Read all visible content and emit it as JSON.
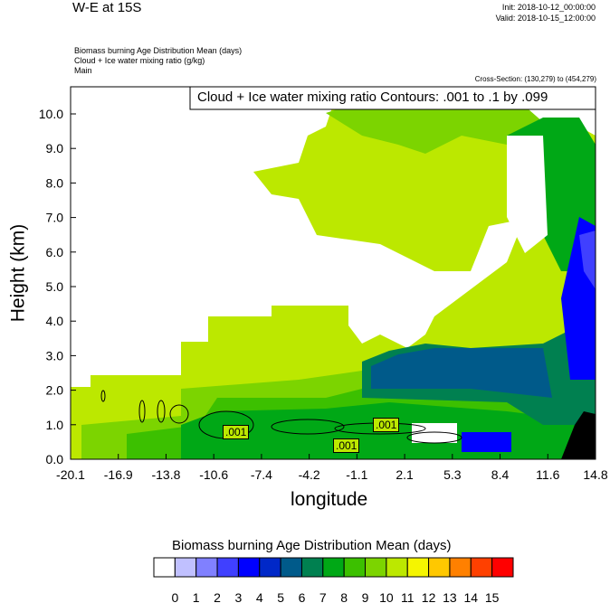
{
  "header": {
    "title": "W-E at 15S",
    "init": "Init: 2018-10-12_00:00:00",
    "valid": "Valid: 2018-10-15_12:00:00",
    "field1": "Biomass burning Age Distribution Mean   (days)",
    "field2": "Cloud + Ice water mixing ratio   (g/kg)",
    "field3": "Main",
    "cross_section": "Cross-Section: (130,279) to (454,279)",
    "contour_box": "Cloud + Ice water mixing ratio Contours: .001 to .1 by .099"
  },
  "chart_data": {
    "type": "heatmap",
    "title": "W-E at 15S",
    "xlabel": "longitude",
    "ylabel": "Height (km)",
    "x_ticks": [
      "-20.1",
      "-16.9",
      "-13.8",
      "-10.6",
      "-7.4",
      "-4.2",
      "-1.1",
      "2.1",
      "5.3",
      "8.4",
      "11.6",
      "14.8"
    ],
    "y_ticks": [
      "0.0",
      "1.0",
      "2.0",
      "3.0",
      "4.0",
      "5.0",
      "6.0",
      "7.0",
      "8.0",
      "9.0",
      "10.0"
    ],
    "xlim": [
      -20.1,
      14.8
    ],
    "ylim": [
      0,
      10.8
    ],
    "contour_labels": [
      ".001",
      ".001",
      ".001"
    ],
    "colorbar": {
      "title": "Biomass burning Age Distribution Mean  (days)",
      "labels": [
        "0",
        "1",
        "2",
        "3",
        "4",
        "5",
        "6",
        "7",
        "8",
        "9",
        "10",
        "11",
        "12",
        "13",
        "14",
        "15"
      ],
      "colors": [
        "#ffffff",
        "#c0c0ff",
        "#8080ff",
        "#4040ff",
        "#0000ff",
        "#0028c8",
        "#005a8a",
        "#008050",
        "#00a816",
        "#3cc000",
        "#7cd400",
        "#bce800",
        "#f5f500",
        "#ffc800",
        "#ff8000",
        "#ff4000",
        "#ff0000"
      ]
    }
  }
}
